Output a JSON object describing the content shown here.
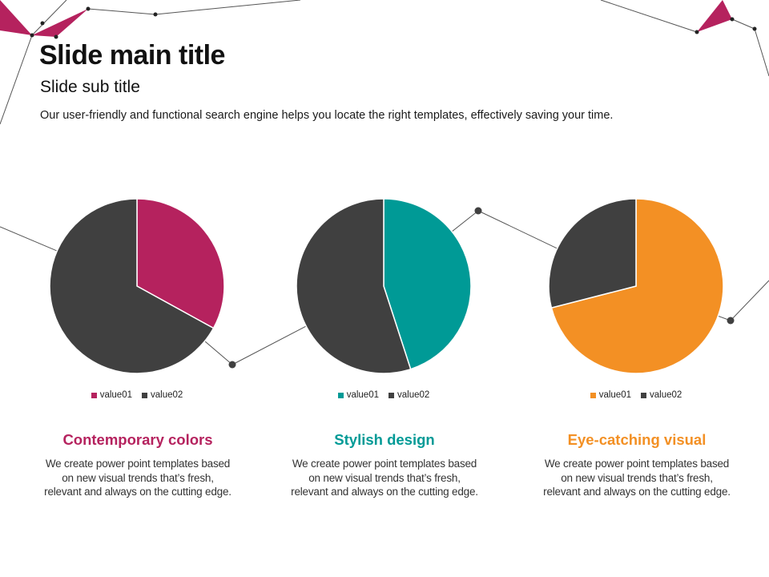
{
  "slide": {
    "title": "Slide main title",
    "subtitle": "Slide sub title",
    "description": "Our user-friendly and functional search engine helps you locate the right templates, effectively saving your time."
  },
  "colors": {
    "magenta": "#B5225E",
    "teal": "#009A96",
    "orange": "#F39024",
    "dark": "#404040",
    "line": "#555555"
  },
  "chart_data": [
    {
      "type": "pie",
      "categories": [
        "value01",
        "value02"
      ],
      "values": [
        33,
        67
      ],
      "colors": [
        "#B5225E",
        "#404040"
      ],
      "legend": "bottom"
    },
    {
      "type": "pie",
      "categories": [
        "value01",
        "value02"
      ],
      "values": [
        45,
        55
      ],
      "colors": [
        "#009A96",
        "#404040"
      ],
      "legend": "bottom"
    },
    {
      "type": "pie",
      "categories": [
        "value01",
        "value02"
      ],
      "values": [
        71,
        29
      ],
      "colors": [
        "#F39024",
        "#404040"
      ],
      "legend": "bottom"
    }
  ],
  "features": [
    {
      "title": "Contemporary colors",
      "color": "#B5225E",
      "line1": "We create power point templates based",
      "line2": "on new visual trends that’s fresh,",
      "line3": "relevant and always on the cutting edge."
    },
    {
      "title": "Stylish design",
      "color": "#009A96",
      "line1": "We create power point templates based",
      "line2": "on new visual trends that’s fresh,",
      "line3": "relevant and always on the cutting edge."
    },
    {
      "title": "Eye-catching visual",
      "color": "#F39024",
      "line1": "We create power point templates based",
      "line2": "on new visual trends that’s fresh,",
      "line3": "relevant and always on the cutting edge."
    }
  ]
}
